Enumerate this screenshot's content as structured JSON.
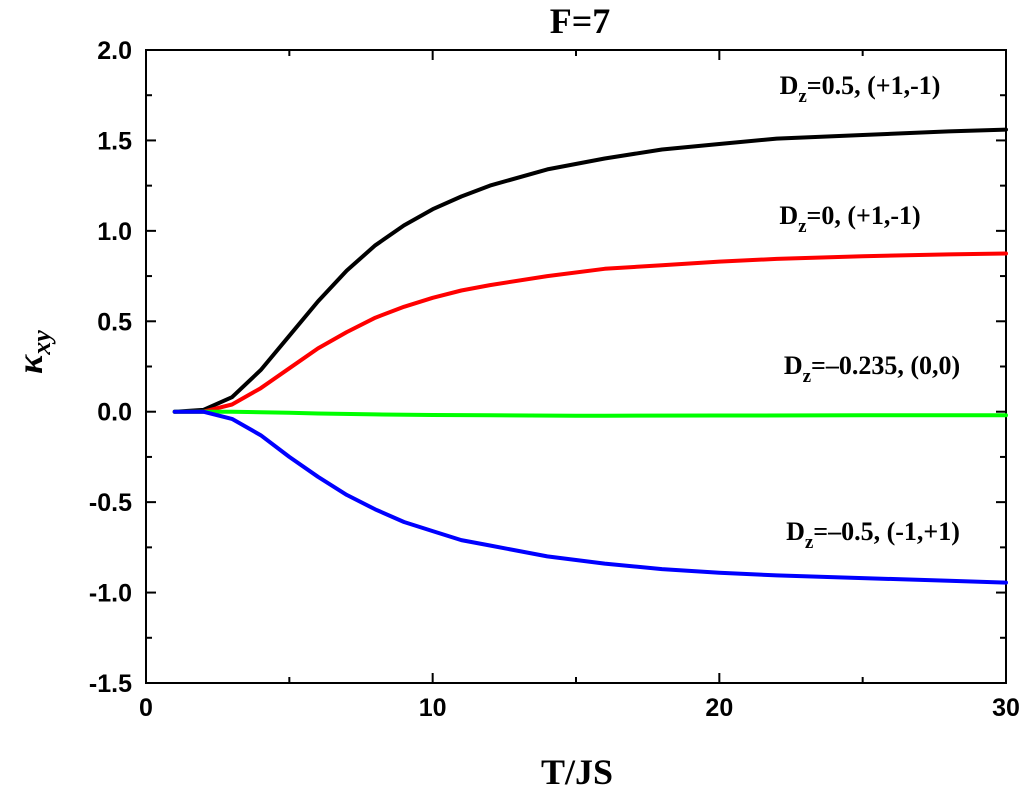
{
  "chart_data": {
    "type": "line",
    "title": "F=7",
    "xlabel": "T/JS",
    "ylabel": "κ",
    "ylabel_sub": "xy",
    "xlim": [
      0,
      30
    ],
    "ylim": [
      -1.5,
      2.0
    ],
    "xticks": [
      0,
      10,
      20,
      30
    ],
    "xtick_labels": [
      "0",
      "10",
      "20",
      "30"
    ],
    "xminor": [
      5,
      15,
      25
    ],
    "yticks": [
      -1.5,
      -1.0,
      -0.5,
      0.0,
      0.5,
      1.0,
      1.5,
      2.0
    ],
    "ytick_labels": [
      "-1.5",
      "-1.0",
      "-0.5",
      "0.0",
      "0.5",
      "1.0",
      "1.5",
      "2.0"
    ],
    "grid": false,
    "legend": "none",
    "series": [
      {
        "color": "#000000",
        "annotation": {
          "main": "D",
          "sub": "z",
          "rest": "=0.5, (+1,-1)"
        },
        "x": [
          1,
          2,
          3,
          4,
          5,
          6,
          7,
          8,
          9,
          10,
          11,
          12,
          14,
          16,
          18,
          20,
          22,
          25,
          28,
          30
        ],
        "y": [
          0.0,
          0.01,
          0.08,
          0.23,
          0.42,
          0.61,
          0.78,
          0.92,
          1.03,
          1.12,
          1.19,
          1.25,
          1.34,
          1.4,
          1.45,
          1.48,
          1.51,
          1.53,
          1.55,
          1.56
        ]
      },
      {
        "color": "#ff0000",
        "annotation": {
          "main": "D",
          "sub": "z",
          "rest": "=0, (+1,-1)"
        },
        "x": [
          1,
          2,
          3,
          4,
          5,
          6,
          7,
          8,
          9,
          10,
          11,
          12,
          14,
          16,
          18,
          20,
          22,
          25,
          28,
          30
        ],
        "y": [
          0.0,
          0.0,
          0.04,
          0.13,
          0.24,
          0.35,
          0.44,
          0.52,
          0.58,
          0.63,
          0.67,
          0.7,
          0.75,
          0.79,
          0.81,
          0.83,
          0.845,
          0.86,
          0.87,
          0.875
        ]
      },
      {
        "color": "#00ff00",
        "annotation": {
          "main": "D",
          "sub": "z",
          "rest": "=–0.235, (0,0)"
        },
        "x": [
          1,
          2,
          3,
          4,
          5,
          6,
          8,
          10,
          12,
          15,
          16,
          20,
          25,
          30
        ],
        "y": [
          0.0,
          0.0,
          0.0,
          -0.003,
          -0.006,
          -0.01,
          -0.015,
          -0.018,
          -0.02,
          -0.022,
          -0.022,
          -0.021,
          -0.02,
          -0.02
        ]
      },
      {
        "color": "#0000ff",
        "annotation": {
          "main": "D",
          "sub": "z",
          "rest": "=–0.5, (-1,+1)"
        },
        "x": [
          1,
          2,
          3,
          4,
          5,
          6,
          7,
          8,
          9,
          10,
          11,
          12,
          14,
          16,
          18,
          20,
          22,
          25,
          28,
          30
        ],
        "y": [
          0.0,
          0.0,
          -0.04,
          -0.13,
          -0.25,
          -0.36,
          -0.46,
          -0.54,
          -0.61,
          -0.66,
          -0.71,
          -0.74,
          -0.8,
          -0.84,
          -0.87,
          -0.89,
          -0.905,
          -0.92,
          -0.935,
          -0.945
        ]
      }
    ]
  }
}
